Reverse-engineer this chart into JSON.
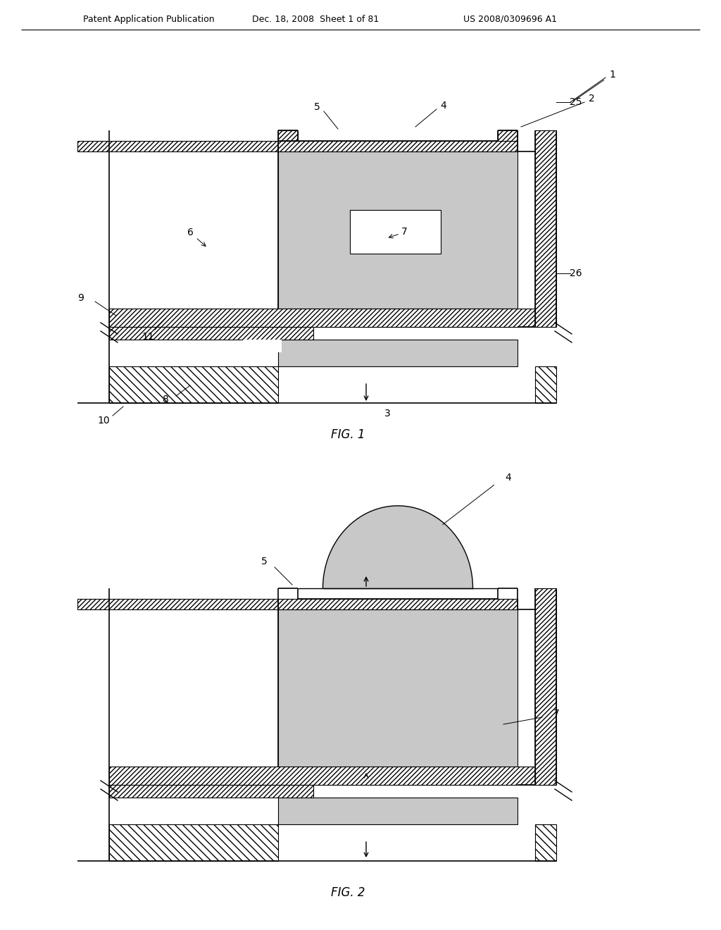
{
  "header_left": "Patent Application Publication",
  "header_mid": "Dec. 18, 2008  Sheet 1 of 81",
  "header_right": "US 2008/0309696 A1",
  "fig1_label": "FIG. 1",
  "fig2_label": "FIG. 2",
  "bg_color": "#ffffff"
}
